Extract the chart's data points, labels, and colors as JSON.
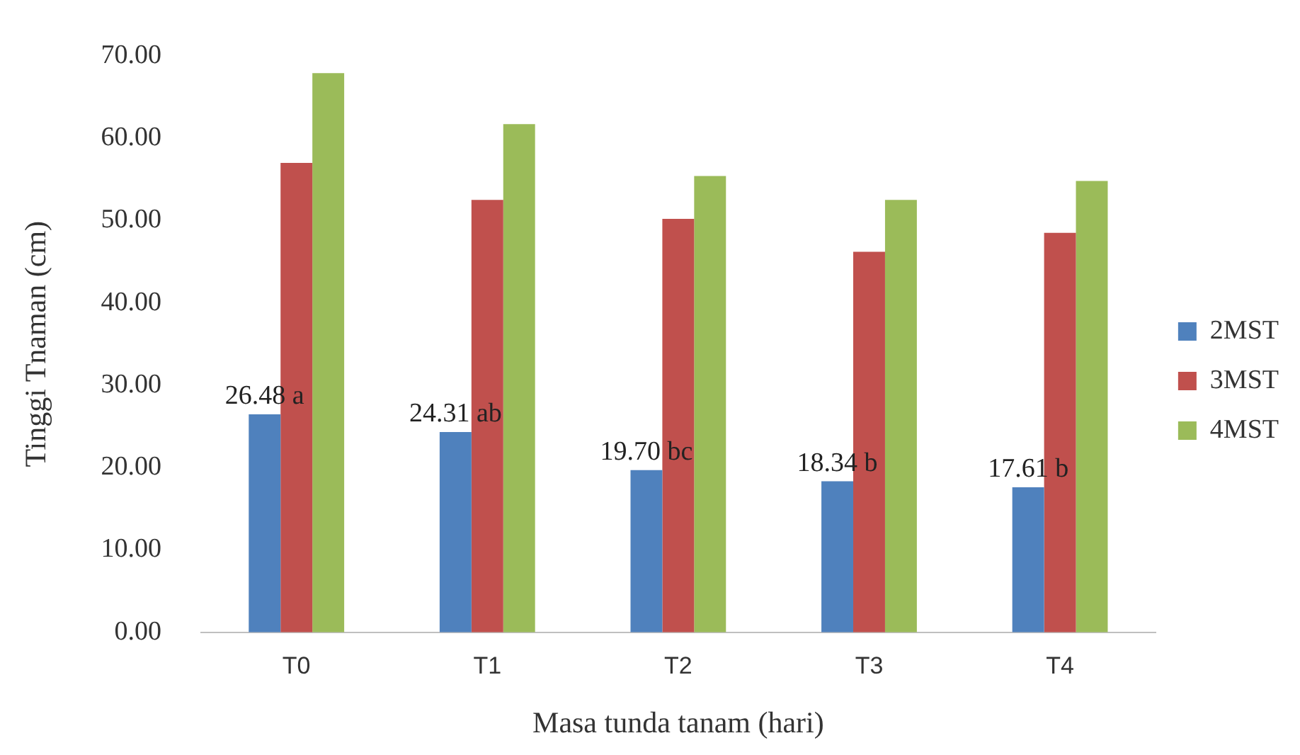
{
  "chart_data": {
    "type": "bar",
    "xlabel": "Masa tunda tanam (hari)",
    "ylabel": "Tinggi Tnaman (cm)",
    "categories": [
      "T0",
      "T1",
      "T2",
      "T3",
      "T4"
    ],
    "series": [
      {
        "name": "2MST",
        "color": "#4f81bd",
        "values": [
          26.48,
          24.31,
          19.7,
          18.34,
          17.61
        ],
        "value_labels": [
          "26.48 a",
          "24.31 ab",
          "19.70 bc",
          "18.34 b",
          "17.61 b"
        ]
      },
      {
        "name": "3MST",
        "color": "#c0504d",
        "values": [
          57.0,
          52.5,
          50.2,
          46.2,
          48.5
        ]
      },
      {
        "name": "4MST",
        "color": "#9bbb59",
        "values": [
          67.9,
          61.7,
          55.4,
          52.5,
          54.8
        ]
      }
    ],
    "ylim": [
      0,
      70
    ],
    "yticks": [
      {
        "value": 0,
        "label": "0.00"
      },
      {
        "value": 10,
        "label": "10.00"
      },
      {
        "value": 20,
        "label": "20.00"
      },
      {
        "value": 30,
        "label": "30.00"
      },
      {
        "value": 40,
        "label": "40.00"
      },
      {
        "value": 50,
        "label": "50.00"
      },
      {
        "value": 60,
        "label": "60.00"
      },
      {
        "value": 70,
        "label": "70.00"
      }
    ],
    "grid": false,
    "legend": "right"
  }
}
